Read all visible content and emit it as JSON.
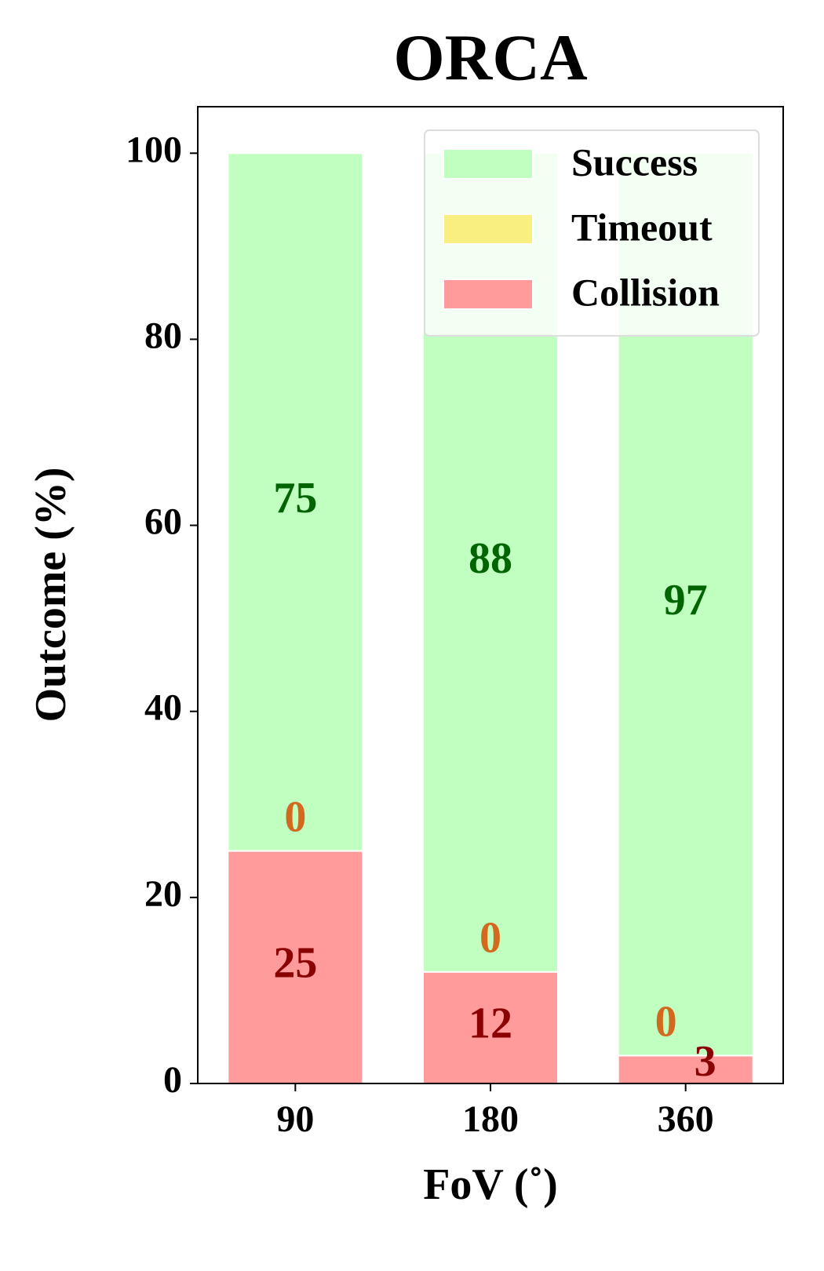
{
  "chart_data": {
    "type": "stacked_bar",
    "title": "ORCA",
    "x_label": "FoV (˚)",
    "y_label": "Outcome (%)",
    "categories": [
      "90",
      "180",
      "360"
    ],
    "series": [
      {
        "name": "Collision",
        "color": "#ff9b9b",
        "label_color": "#8b0000",
        "values": [
          25,
          12,
          3
        ]
      },
      {
        "name": "Timeout",
        "color": "#f8ef80",
        "label_color": "#d2691e",
        "values": [
          0,
          0,
          0
        ]
      },
      {
        "name": "Success",
        "color": "#c1ffc1",
        "label_color": "#006400",
        "values": [
          75,
          88,
          97
        ]
      }
    ],
    "ylim": [
      0,
      105
    ],
    "yticks": [
      0,
      20,
      40,
      60,
      80,
      100
    ],
    "legend": "upper right"
  }
}
